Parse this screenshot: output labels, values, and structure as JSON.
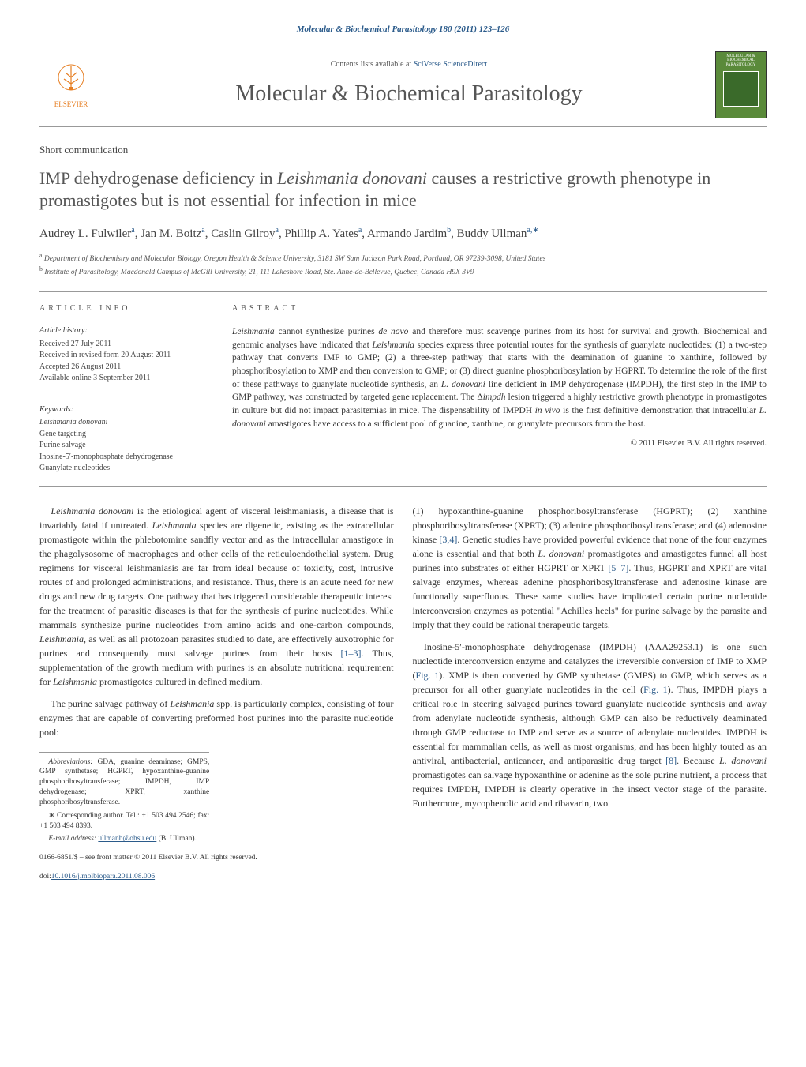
{
  "header": {
    "citation": "Molecular & Biochemical Parasitology 180 (2011) 123–126",
    "availability_prefix": "Contents lists available at ",
    "availability_link": "SciVerse ScienceDirect",
    "journal_name": "Molecular & Biochemical Parasitology",
    "publisher_name": "ELSEVIER",
    "cover_title": "MOLECULAR & BIOCHEMICAL PARASITOLOGY"
  },
  "article": {
    "type": "Short communication",
    "title_html": "IMP dehydrogenase deficiency in <em>Leishmania donovani</em> causes a restrictive growth phenotype in promastigotes but is not essential for infection in mice",
    "authors_html": "Audrey L. Fulwiler<sup>a</sup>, Jan M. Boitz<sup>a</sup>, Caslin Gilroy<sup>a</sup>, Phillip A. Yates<sup>a</sup>, Armando Jardim<sup>b</sup>, Buddy Ullman<sup>a,∗</sup>",
    "affiliations": [
      {
        "sup": "a",
        "text": "Department of Biochemistry and Molecular Biology, Oregon Health & Science University, 3181 SW Sam Jackson Park Road, Portland, OR 97239-3098, United States"
      },
      {
        "sup": "b",
        "text": "Institute of Parasitology, Macdonald Campus of McGill University, 21, 111 Lakeshore Road, Ste. Anne-de-Bellevue, Quebec, Canada H9X 3V9"
      }
    ]
  },
  "article_info": {
    "heading": "article info",
    "history_heading": "Article history:",
    "history": [
      "Received 27 July 2011",
      "Received in revised form 20 August 2011",
      "Accepted 26 August 2011",
      "Available online 3 September 2011"
    ],
    "keywords_heading": "Keywords:",
    "keywords": [
      "Leishmania donovani",
      "Gene targeting",
      "Purine salvage",
      "Inosine-5′-monophosphate dehydrogenase",
      "Guanylate nucleotides"
    ]
  },
  "abstract": {
    "heading": "abstract",
    "text_html": "<em>Leishmania</em> cannot synthesize purines <em>de novo</em> and therefore must scavenge purines from its host for survival and growth. Biochemical and genomic analyses have indicated that <em>Leishmania</em> species express three potential routes for the synthesis of guanylate nucleotides: (1) a two-step pathway that converts IMP to GMP; (2) a three-step pathway that starts with the deamination of guanine to xanthine, followed by phosphoribosylation to XMP and then conversion to GMP; or (3) direct guanine phosphoribosylation by HGPRT. To determine the role of the first of these pathways to guanylate nucleotide synthesis, an <em>L. donovani</em> line deficient in IMP dehydrogenase (IMPDH), the first step in the IMP to GMP pathway, was constructed by targeted gene replacement. The Δ<em>impdh</em> lesion triggered a highly restrictive growth phenotype in promastigotes in culture but did not impact parasitemias in mice. The dispensability of IMPDH <em>in vivo</em> is the first definitive demonstration that intracellular <em>L. donovani</em> amastigotes have access to a sufficient pool of guanine, xanthine, or guanylate precursors from the host.",
    "copyright": "© 2011 Elsevier B.V. All rights reserved."
  },
  "body": {
    "left_paragraphs": [
      "<em>Leishmania donovani</em> is the etiological agent of visceral leishmaniasis, a disease that is invariably fatal if untreated. <em>Leishmania</em> species are digenetic, existing as the extracellular promastigote within the phlebotomine sandfly vector and as the intracellular amastigote in the phagolysosome of macrophages and other cells of the reticuloendothelial system. Drug regimens for visceral leishmaniasis are far from ideal because of toxicity, cost, intrusive routes of and prolonged administrations, and resistance. Thus, there is an acute need for new drugs and new drug targets. One pathway that has triggered considerable therapeutic interest for the treatment of parasitic diseases is that for the synthesis of purine nucleotides. While mammals synthesize purine nucleotides from amino acids and one-carbon compounds, <em>Leishmania</em>, as well as all protozoan parasites studied to date, are effectively auxotrophic for purines and consequently must salvage purines from their hosts <span class=\"cite-link\">[1–3]</span>. Thus, supplementation of the growth medium with purines is an absolute nutritional requirement for <em>Leishmania</em> promastigotes cultured in defined medium.",
      "The purine salvage pathway of <em>Leishmania</em> spp. is particularly complex, consisting of four enzymes that are capable of converting preformed host purines into the parasite nucleotide pool:"
    ],
    "right_paragraphs": [
      "(1) hypoxanthine-guanine phosphoribosyltransferase (HGPRT); (2) xanthine phosphoribosyltransferase (XPRT); (3) adenine phosphoribosyltransferase; and (4) adenosine kinase <span class=\"cite-link\">[3,4]</span>. Genetic studies have provided powerful evidence that none of the four enzymes alone is essential and that both <em>L. donovani</em> promastigotes and amastigotes funnel all host purines into substrates of either HGPRT or XPRT <span class=\"cite-link\">[5–7]</span>. Thus, HGPRT and XPRT are vital salvage enzymes, whereas adenine phosphoribosyltransferase and adenosine kinase are functionally superfluous. These same studies have implicated certain purine nucleotide interconversion enzymes as potential \"Achilles heels\" for purine salvage by the parasite and imply that they could be rational therapeutic targets.",
      "Inosine-5′-monophosphate dehydrogenase (IMPDH) (AAA29253.1) is one such nucleotide interconversion enzyme and catalyzes the irreversible conversion of IMP to XMP (<span class=\"cite-link\">Fig. 1</span>). XMP is then converted by GMP synthetase (GMPS) to GMP, which serves as a precursor for all other guanylate nucleotides in the cell (<span class=\"cite-link\">Fig. 1</span>). Thus, IMPDH plays a critical role in steering salvaged purines toward guanylate nucleotide synthesis and away from adenylate nucleotide synthesis, although GMP can also be reductively deaminated through GMP reductase to IMP and serve as a source of adenylate nucleotides. IMPDH is essential for mammalian cells, as well as most organisms, and has been highly touted as an antiviral, antibacterial, anticancer, and antiparasitic drug target <span class=\"cite-link\">[8]</span>. Because <em>L. donovani</em> promastigotes can salvage hypoxanthine or adenine as the sole purine nutrient, a process that requires IMPDH, IMPDH is clearly operative in the insect vector stage of the parasite. Furthermore, mycophenolic acid and ribavarin, two"
    ]
  },
  "footnotes": {
    "abbrev_label": "Abbreviations:",
    "abbrev_text": " GDA, guanine deaminase; GMPS, GMP synthetase; HGPRT, hypoxanthine-guanine phosphoribosyltransferase; IMPDH, IMP dehydrogenase; XPRT, xanthine phosphoribosyltransferase.",
    "corresponding": "∗ Corresponding author. Tel.: +1 503 494 2546; fax: +1 503 494 8393.",
    "email_label": "E-mail address: ",
    "email": "ullmanb@ohsu.edu",
    "email_suffix": " (B. Ullman).",
    "issn_line": "0166-6851/$ – see front matter © 2011 Elsevier B.V. All rights reserved.",
    "doi_prefix": "doi:",
    "doi": "10.1016/j.molbiopara.2011.08.006"
  },
  "colors": {
    "link": "#2a5a8a",
    "publisher_orange": "#e67e22",
    "cover_bg": "#5a8a3a",
    "text_gray": "#555",
    "rule": "#999"
  }
}
